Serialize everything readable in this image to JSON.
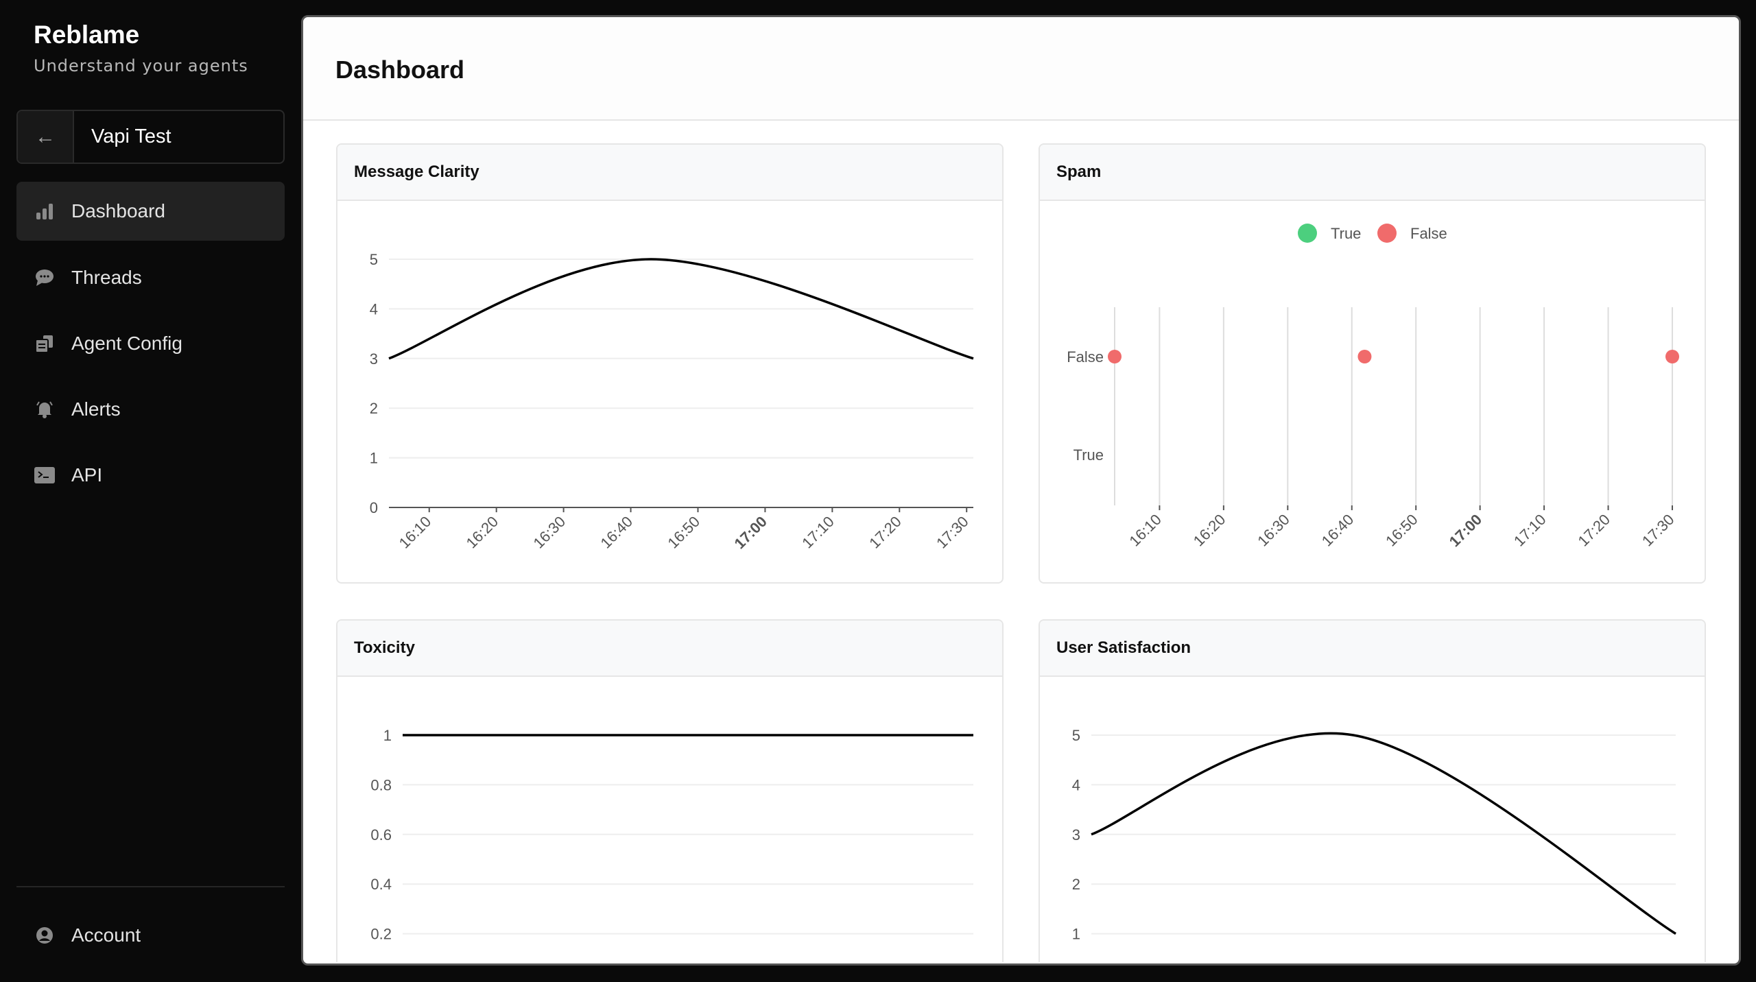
{
  "sidebar": {
    "brand": "Reblame",
    "tagline": "Understand your agents",
    "project": {
      "name": "Vapi Test",
      "back_icon": "arrow-left-icon"
    },
    "items": [
      {
        "label": "Dashboard",
        "icon": "bar-chart-icon",
        "active": true
      },
      {
        "label": "Threads",
        "icon": "chat-bubble-icon"
      },
      {
        "label": "Agent Config",
        "icon": "documents-icon"
      },
      {
        "label": "Alerts",
        "icon": "bell-icon"
      },
      {
        "label": "API",
        "icon": "terminal-icon"
      }
    ],
    "account": {
      "label": "Account",
      "icon": "user-circle-icon"
    }
  },
  "main": {
    "title": "Dashboard"
  },
  "chart_data": [
    {
      "type": "line",
      "title": "Message Clarity",
      "x": [
        "16:04",
        "16:43",
        "17:31"
      ],
      "values": [
        3,
        5,
        3
      ],
      "ylim": [
        0,
        5
      ],
      "yticks": [
        "0",
        "1",
        "2",
        "3",
        "4",
        "5"
      ],
      "xticks": [
        "16:10",
        "16:20",
        "16:30",
        "16:40",
        "16:50",
        "17:00",
        "17:10",
        "17:20",
        "17:30"
      ],
      "grid": true,
      "line_color": "#000000"
    },
    {
      "type": "scatter",
      "title": "Spam",
      "x": [
        "16:03",
        "16:42",
        "17:30"
      ],
      "values": [
        "False",
        "False",
        "False"
      ],
      "ycategories": [
        "True",
        "False"
      ],
      "xticks": [
        "16:10",
        "16:20",
        "16:30",
        "16:40",
        "16:50",
        "17:00",
        "17:10",
        "17:20",
        "17:30"
      ],
      "legend": {
        "position": "top",
        "entries": [
          {
            "name": "True",
            "color": "#4ccf7e"
          },
          {
            "name": "False",
            "color": "#f06b6b"
          }
        ]
      }
    },
    {
      "type": "line",
      "title": "Toxicity",
      "x": [
        "16:04",
        "16:43",
        "17:31"
      ],
      "values": [
        1,
        1,
        1
      ],
      "ylim": [
        0,
        1
      ],
      "yticks": [
        "0.2",
        "0.4",
        "0.6",
        "0.8",
        "1"
      ],
      "grid": true,
      "line_color": "#000000"
    },
    {
      "type": "line",
      "title": "User Satisfaction",
      "x": [
        "16:04",
        "16:43",
        "17:31"
      ],
      "values": [
        3,
        5,
        1
      ],
      "ylim": [
        0,
        5
      ],
      "yticks": [
        "1",
        "2",
        "3",
        "4",
        "5"
      ],
      "grid": true,
      "line_color": "#000000"
    }
  ]
}
